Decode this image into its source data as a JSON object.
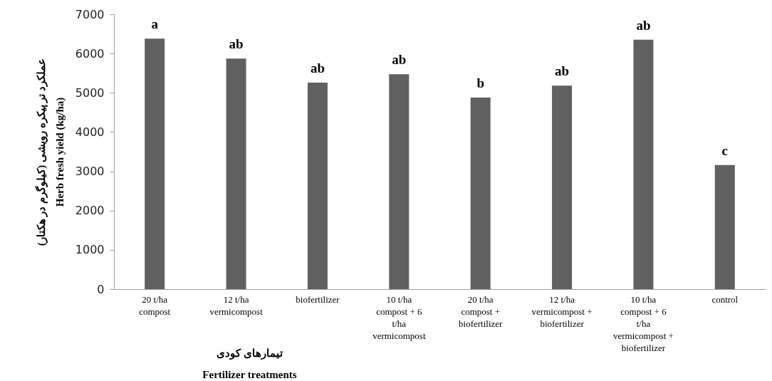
{
  "chart_data": {
    "type": "bar",
    "categories": [
      "20 t/ha compost",
      "12 t/ha vermicompost",
      "biofertilizer",
      "10 t/ha compost + 6 t/ha vermicompost",
      "20 t/ha compost + biofertilizer",
      "12 t/ha vermicompost + biofertilizer",
      "10 t/ha compost + 6 t/ha vermicompost + biofertilizer",
      "control"
    ],
    "values": [
      6380,
      5870,
      5260,
      5470,
      4880,
      5180,
      6350,
      3160
    ],
    "color": "#606060",
    "xlabel": "تیمارهای کودی\nFertilizer treatments",
    "ylabel": "عملکرد تر پیکره رویشی (کیلوگرم در هکتار)\nHerb fresh yield (kg/ha)",
    "ylim": [
      0,
      7000
    ],
    "yticks": [
      0,
      1000,
      2000,
      3000,
      4000,
      5000,
      6000,
      7000
    ],
    "grid": false,
    "annotations": [
      {
        "text": "a",
        "x": "20 t/ha compost",
        "y": 6380
      },
      {
        "text": "ab",
        "x": "12 t/ha vermicompost",
        "y": 5870
      },
      {
        "text": "ab",
        "x": "biofertilizer",
        "y": 5260
      },
      {
        "text": "ab",
        "x": "10 t/ha compost + 6 t/ha vermicompost",
        "y": 5470
      },
      {
        "text": "b",
        "x": "20 t/ha compost + biofertilizer",
        "y": 4880
      },
      {
        "text": "ab",
        "x": "12 t/ha vermicompost + biofertilizer",
        "y": 5180
      },
      {
        "text": "ab",
        "x": "10 t/ha compost + 6 t/ha vermicompost + biofertilizer",
        "y": 6350
      },
      {
        "text": "c",
        "x": "control",
        "y": 3160
      }
    ]
  }
}
